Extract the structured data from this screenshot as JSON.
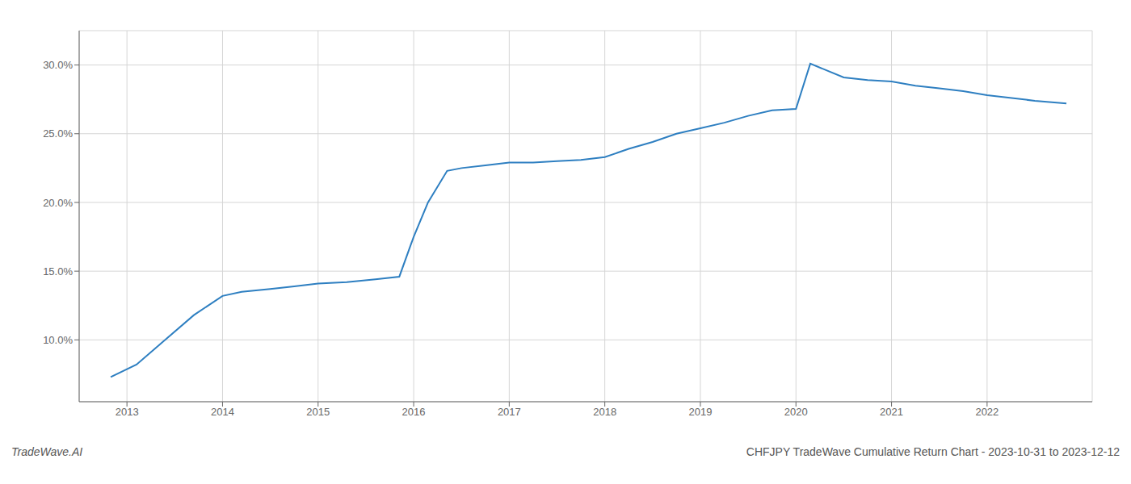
{
  "chart_data": {
    "type": "line",
    "title": "CHFJPY TradeWave Cumulative Return Chart - 2023-10-31 to 2023-12-12",
    "annotations": [
      "TradeWave.AI"
    ],
    "x": [
      2012.83,
      2013.1,
      2013.4,
      2013.7,
      2014.0,
      2014.2,
      2014.5,
      2014.75,
      2015.0,
      2015.3,
      2015.6,
      2015.85,
      2016.0,
      2016.15,
      2016.35,
      2016.5,
      2016.75,
      2017.0,
      2017.25,
      2017.5,
      2017.75,
      2018.0,
      2018.25,
      2018.5,
      2018.75,
      2019.0,
      2019.25,
      2019.5,
      2019.75,
      2020.0,
      2020.15,
      2020.5,
      2020.75,
      2021.0,
      2021.25,
      2021.5,
      2021.75,
      2022.0,
      2022.5,
      2022.83
    ],
    "values": [
      7.3,
      8.2,
      10.0,
      11.8,
      13.2,
      13.5,
      13.7,
      13.9,
      14.1,
      14.2,
      14.4,
      14.6,
      17.5,
      20.0,
      22.3,
      22.5,
      22.7,
      22.9,
      22.9,
      23.0,
      23.1,
      23.3,
      23.9,
      24.4,
      25.0,
      25.4,
      25.8,
      26.3,
      26.7,
      26.8,
      30.1,
      29.1,
      28.9,
      28.8,
      28.5,
      28.3,
      28.1,
      27.8,
      27.4,
      27.2
    ],
    "color": "#2e7fc1",
    "xlim": [
      2012.5,
      2023.1
    ],
    "xticks": [
      2013,
      2014,
      2015,
      2016,
      2017,
      2018,
      2019,
      2020,
      2021,
      2022
    ],
    "ylim": [
      5.5,
      32.5
    ],
    "yticks": [
      {
        "value": 10.0,
        "label": "10.0%"
      },
      {
        "value": 15.0,
        "label": "15.0%"
      },
      {
        "value": 20.0,
        "label": "20.0%"
      },
      {
        "value": 25.0,
        "label": "25.0%"
      },
      {
        "value": 30.0,
        "label": "30.0%"
      }
    ],
    "grid": true
  }
}
